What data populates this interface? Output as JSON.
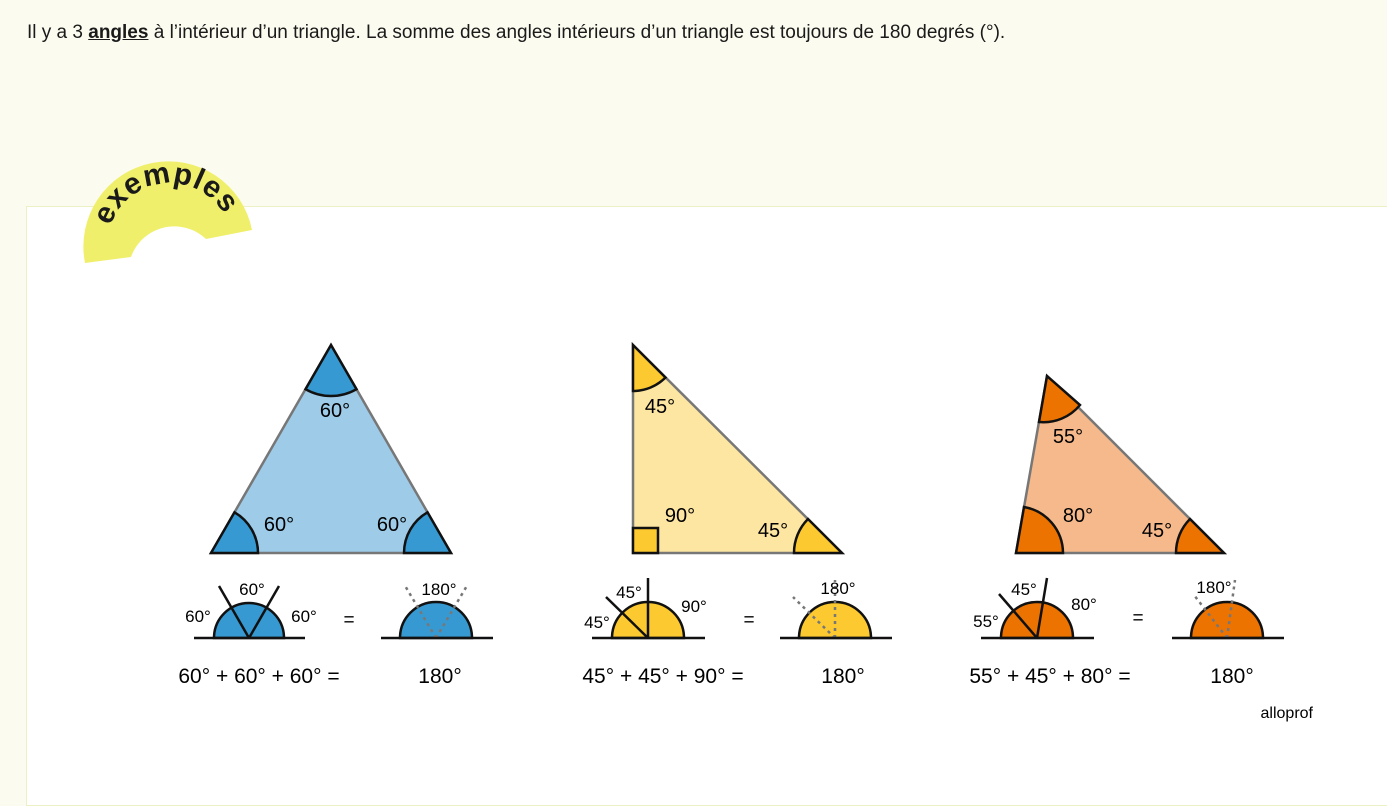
{
  "intro": {
    "before": "Il y a 3 ",
    "link": "angles",
    "after": " à l’intérieur d’un triangle. La somme des angles intérieurs d’un triangle est toujours de 180 degrés (°)."
  },
  "badge": {
    "label": "exemples",
    "color": "#f0ef6b"
  },
  "brand": "alloprof",
  "colors": {
    "blue_fill": "#9ecbe8",
    "blue_angle": "#3799d1",
    "yellow_fill": "#fde6a1",
    "yellow_angle": "#fcc931",
    "orange_fill": "#f5b98b",
    "orange_angle": "#ec7300"
  },
  "examples": [
    {
      "triangle_labels": [
        "60°",
        "60°",
        "60°"
      ],
      "decomp_labels": [
        "60°",
        "60°",
        "60°"
      ],
      "result_label": "180°",
      "equals": "=",
      "equation": "60° + 60° + 60° =",
      "equation_result": "180°"
    },
    {
      "triangle_labels": [
        "45°",
        "90°",
        "45°"
      ],
      "decomp_labels": [
        "45°",
        "45°",
        "90°"
      ],
      "result_label": "180°",
      "equals": "=",
      "equation": "45° + 45° + 90° =",
      "equation_result": "180°"
    },
    {
      "triangle_labels": [
        "55°",
        "80°",
        "45°"
      ],
      "decomp_labels": [
        "45°",
        "55°",
        "80°"
      ],
      "result_label": "180°",
      "equals": "=",
      "equation": "55° + 45° + 80° =",
      "equation_result": "180°"
    }
  ]
}
